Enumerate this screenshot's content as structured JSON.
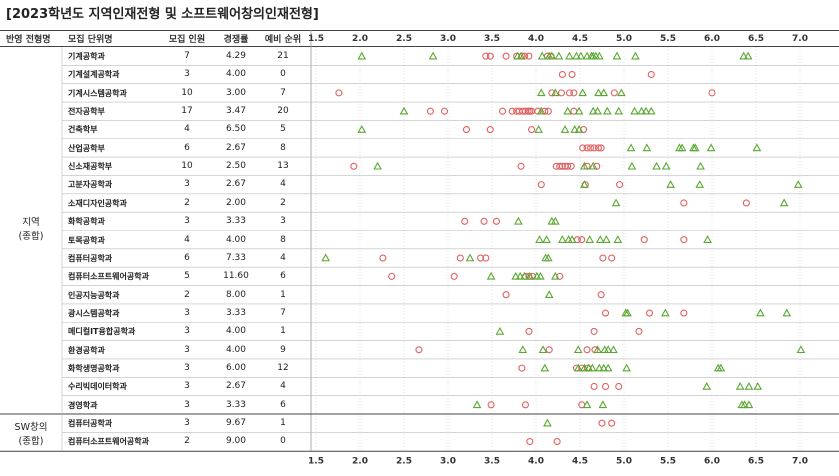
{
  "title": "[2023학년도 지역인재전형 및 소프트웨어창의인재전형]",
  "headers": {
    "type": "반영 전형명",
    "dept": "모집 단위명",
    "quota": "모집 인원",
    "rate": "경쟁률",
    "rank": "예비 순위"
  },
  "groups": [
    {
      "line1": "지역",
      "line2": "(종합)"
    },
    {
      "line1": "SW창의",
      "line2": "(종합)"
    }
  ],
  "colors": {
    "pass": "#5aa832",
    "fail": "#e06060",
    "header_line": "#333333",
    "grid": "#cccccc"
  },
  "chart_data": {
    "type": "scatter",
    "title": "[2023학년도 지역인재전형 및 소프트웨어창의인재전형]",
    "xlim": [
      1.3,
      7.2
    ],
    "x_ticks": [
      "1.5",
      "2.0",
      "2.5",
      "3.0",
      "3.5",
      "4.0",
      "4.5",
      "5.0",
      "5.5",
      "6.0",
      "6.5",
      "7.0"
    ],
    "x_tick_values": [
      1.5,
      2.0,
      2.5,
      3.0,
      3.5,
      4.0,
      4.5,
      5.0,
      5.5,
      6.0,
      6.5,
      7.0
    ],
    "grid": true,
    "markers": {
      "triangle": "pass",
      "circle": "fail"
    },
    "rows": [
      {
        "group": 0,
        "name": "기계공학과",
        "quota": "7",
        "rate": "4.29",
        "rank": "21",
        "pass": [
          2.02,
          2.83,
          3.79,
          3.83,
          4.07,
          4.15,
          4.18,
          4.26,
          4.38,
          4.46,
          4.51,
          4.58,
          4.63,
          4.65,
          4.68,
          4.72,
          4.92,
          5.13,
          6.36,
          6.41
        ],
        "fail": [
          3.43,
          3.48,
          3.66,
          3.78,
          3.84,
          3.87,
          3.92,
          4.13,
          4.17
        ]
      },
      {
        "group": 0,
        "name": "기계설계공학과",
        "quota": "3",
        "rate": "4.00",
        "rank": "0",
        "pass": [],
        "fail": [
          4.3,
          4.41,
          5.31
        ]
      },
      {
        "group": 0,
        "name": "기계시스템공학과",
        "quota": "10",
        "rate": "3.00",
        "rank": "7",
        "pass": [
          4.06,
          4.22,
          4.53,
          4.71,
          4.77,
          4.97
        ],
        "fail": [
          1.76,
          4.18,
          4.29,
          4.38,
          4.43,
          4.89,
          6.0
        ]
      },
      {
        "group": 0,
        "name": "전자공학부",
        "quota": "17",
        "rate": "3.47",
        "rank": "20",
        "pass": [
          2.5,
          4.06,
          4.36,
          4.49,
          4.65,
          4.7,
          4.81,
          4.94,
          5.12,
          5.2,
          5.25,
          5.31
        ],
        "fail": [
          2.8,
          2.96,
          3.62,
          3.73,
          3.78,
          3.81,
          3.85,
          3.88,
          3.91,
          3.93,
          3.95,
          4.02,
          4.1,
          4.14,
          4.43
        ]
      },
      {
        "group": 0,
        "name": "건축학부",
        "quota": "4",
        "rate": "6.50",
        "rank": "5",
        "pass": [
          2.02,
          4.03,
          4.33,
          4.44,
          4.49
        ],
        "fail": [
          3.21,
          3.48,
          3.95,
          4.54
        ]
      },
      {
        "group": 0,
        "name": "산업공학부",
        "quota": "6",
        "rate": "2.67",
        "rank": "8",
        "pass": [
          5.08,
          5.26,
          5.63,
          5.66,
          5.79,
          5.81,
          5.99,
          6.51
        ],
        "fail": [
          4.53,
          4.58,
          4.62,
          4.66,
          4.71,
          4.74
        ]
      },
      {
        "group": 0,
        "name": "신소재공학부",
        "quota": "10",
        "rate": "2.50",
        "rank": "13",
        "pass": [
          2.2,
          4.55,
          4.65,
          5.09,
          5.37,
          5.48,
          5.87
        ],
        "fail": [
          1.93,
          3.83,
          4.23,
          4.27,
          4.3,
          4.33,
          4.36,
          4.4,
          4.58,
          4.69
        ]
      },
      {
        "group": 0,
        "name": "고분자공학과",
        "quota": "3",
        "rate": "2.67",
        "rank": "4",
        "pass": [
          4.55,
          5.53,
          5.86,
          6.98
        ],
        "fail": [
          4.06,
          4.56,
          4.95
        ]
      },
      {
        "group": 0,
        "name": "소재디자인공학과",
        "quota": "2",
        "rate": "2.00",
        "rank": "2",
        "pass": [
          4.91,
          6.82
        ],
        "fail": [
          5.68,
          6.39
        ]
      },
      {
        "group": 0,
        "name": "화학공학과",
        "quota": "3",
        "rate": "3.33",
        "rank": "3",
        "pass": [
          3.8,
          4.18,
          4.22
        ],
        "fail": [
          3.19,
          3.41,
          3.55
        ]
      },
      {
        "group": 0,
        "name": "토목공학과",
        "quota": "4",
        "rate": "4.00",
        "rank": "8",
        "pass": [
          4.04,
          4.12,
          4.3,
          4.37,
          4.41,
          4.61,
          4.73,
          4.8,
          4.93,
          5.95
        ],
        "fail": [
          4.47,
          4.52,
          5.23,
          5.68
        ]
      },
      {
        "group": 0,
        "name": "컴퓨터공학과",
        "quota": "6",
        "rate": "7.33",
        "rank": "4",
        "pass": [
          1.61,
          3.25,
          4.11,
          4.14
        ],
        "fail": [
          2.26,
          3.14,
          3.37,
          3.43,
          4.76,
          4.86
        ]
      },
      {
        "group": 0,
        "name": "컴퓨터소프트웨어공학과",
        "quota": "5",
        "rate": "11.60",
        "rank": "6",
        "pass": [
          3.49,
          3.77,
          3.82,
          3.87,
          3.93,
          4.01,
          4.05,
          4.22
        ],
        "fail": [
          2.36,
          3.07,
          3.88,
          3.92,
          3.96,
          4.27
        ]
      },
      {
        "group": 0,
        "name": "인공지능공학과",
        "quota": "2",
        "rate": "8.00",
        "rank": "1",
        "pass": [
          4.15
        ],
        "fail": [
          3.66,
          4.74
        ]
      },
      {
        "group": 0,
        "name": "광시스템공학과",
        "quota": "3",
        "rate": "3.33",
        "rank": "7",
        "pass": [
          5.02,
          5.04,
          5.47,
          6.55,
          6.85
        ],
        "fail": [
          4.79,
          5.29,
          5.68
        ]
      },
      {
        "group": 0,
        "name": "메디컬IT융합공학과",
        "quota": "3",
        "rate": "4.00",
        "rank": "1",
        "pass": [
          3.59
        ],
        "fail": [
          3.92,
          4.66,
          5.17
        ]
      },
      {
        "group": 0,
        "name": "환경공학과",
        "quota": "3",
        "rate": "4.00",
        "rank": "9",
        "pass": [
          3.85,
          4.08,
          4.48,
          4.7,
          4.78,
          4.82,
          4.88,
          7.01
        ],
        "fail": [
          2.67,
          4.15,
          4.58,
          4.67
        ]
      },
      {
        "group": 0,
        "name": "화학생명공학과",
        "quota": "3",
        "rate": "6.00",
        "rank": "12",
        "pass": [
          4.1,
          4.48,
          4.55,
          4.6,
          4.64,
          4.72,
          4.77,
          4.82,
          5.03,
          6.07,
          6.1
        ],
        "fail": [
          3.84,
          4.46,
          4.52,
          4.59
        ]
      },
      {
        "group": 0,
        "name": "수리빅데이터학과",
        "quota": "3",
        "rate": "2.67",
        "rank": "4",
        "pass": [
          5.94,
          6.32,
          6.42,
          6.52
        ],
        "fail": [
          4.66,
          4.79,
          4.94
        ]
      },
      {
        "group": 0,
        "name": "경영학과",
        "quota": "3",
        "rate": "3.33",
        "rank": "6",
        "pass": [
          3.33,
          4.58,
          4.76,
          6.34,
          6.37,
          6.42
        ],
        "fail": [
          3.49,
          3.88,
          4.52
        ]
      },
      {
        "group": 1,
        "name": "컴퓨터공학과",
        "quota": "3",
        "rate": "9.67",
        "rank": "1",
        "pass": [
          4.13
        ],
        "fail": [
          4.75,
          4.86
        ]
      },
      {
        "group": 1,
        "name": "컴퓨터소프트웨어공학과",
        "quota": "2",
        "rate": "9.00",
        "rank": "0",
        "pass": [],
        "fail": [
          3.93,
          4.24
        ]
      }
    ]
  }
}
